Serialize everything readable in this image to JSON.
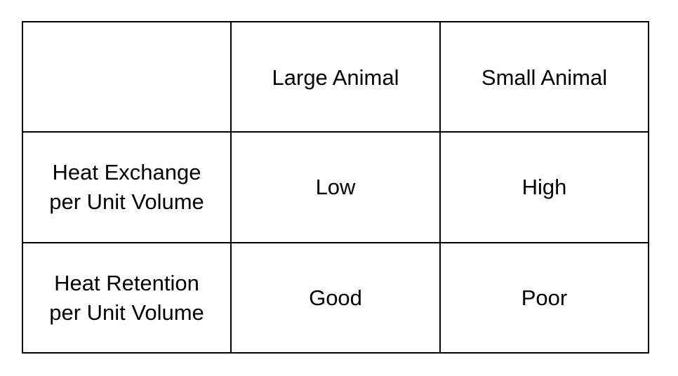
{
  "table": {
    "corner": "",
    "columns": [
      "Large Animal",
      "Small Animal"
    ],
    "rows": [
      {
        "label_lines": [
          "Heat Exchange",
          "per Unit Volume"
        ],
        "values": [
          "Low",
          "High"
        ]
      },
      {
        "label_lines": [
          "Heat Retention",
          "per Unit Volume"
        ],
        "values": [
          "Good",
          "Poor"
        ]
      }
    ]
  }
}
